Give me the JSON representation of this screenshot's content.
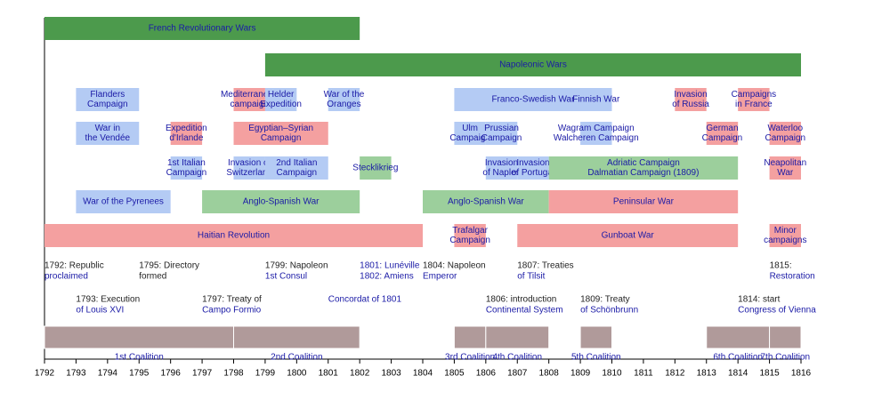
{
  "chart_data": {
    "type": "timeline",
    "xlim": [
      1792,
      1816
    ],
    "xticks": [
      1792,
      1793,
      1794,
      1795,
      1796,
      1797,
      1798,
      1799,
      1800,
      1801,
      1802,
      1803,
      1804,
      1805,
      1806,
      1807,
      1808,
      1809,
      1810,
      1811,
      1812,
      1813,
      1814,
      1815,
      1816
    ],
    "label_color": "#1a1aa6",
    "rows": [
      [
        {
          "start": 1792,
          "end": 1802,
          "label": [
            "French Revolutionary Wars"
          ],
          "color": "#4c9a4c"
        }
      ],
      [
        {
          "start": 1799,
          "end": 1816,
          "label": [
            "Napoleonic Wars"
          ],
          "color": "#4c9a4c"
        }
      ],
      [
        {
          "start": 1793,
          "end": 1795,
          "label": [
            "Flanders",
            "Campaign"
          ],
          "color": "#b4cbf4"
        },
        {
          "start": 1798,
          "end": 1799,
          "label": [
            "Mediterranean",
            "campaign"
          ],
          "color": "#f4a0a0"
        },
        {
          "start": 1799,
          "end": 1800,
          "label": [
            "Helder",
            "Expedition"
          ],
          "color": "#b4cbf4"
        },
        {
          "start": 1801,
          "end": 1802,
          "label": [
            "War of the",
            "Oranges"
          ],
          "color": "#b4cbf4"
        },
        {
          "start": 1805,
          "end": 1810,
          "label": [
            "Franco-Swedish War"
          ],
          "color": "#b4cbf4"
        },
        {
          "start": 1809,
          "end": 1810,
          "label": [
            "Finnish War"
          ],
          "color": "#b4cbf4"
        },
        {
          "start": 1812,
          "end": 1813,
          "label": [
            "Invasion",
            "of Russia"
          ],
          "color": "#f4a0a0"
        },
        {
          "start": 1814,
          "end": 1815,
          "label": [
            "Campaigns",
            "in France"
          ],
          "color": "#f4a0a0"
        }
      ],
      [
        {
          "start": 1793,
          "end": 1795,
          "label": [
            "War in",
            "the Vendée"
          ],
          "color": "#b4cbf4"
        },
        {
          "start": 1796,
          "end": 1797,
          "label": [
            "Expedition",
            "d'Irlande"
          ],
          "color": "#f4a0a0"
        },
        {
          "start": 1798,
          "end": 1801,
          "label": [
            "Egyptian–Syrian",
            "Campaign"
          ],
          "color": "#f4a0a0"
        },
        {
          "start": 1805,
          "end": 1806,
          "label": [
            "Ulm",
            "Campaign"
          ],
          "color": "#b4cbf4"
        },
        {
          "start": 1806,
          "end": 1807,
          "label": [
            "Prussian",
            "Campaign"
          ],
          "color": "#b4cbf4"
        },
        {
          "start": 1809,
          "end": 1810,
          "label": [
            "Wagram Campaign",
            "Walcheren Campaign"
          ],
          "color": "#b4cbf4"
        },
        {
          "start": 1813,
          "end": 1814,
          "label": [
            "German",
            "Campaign"
          ],
          "color": "#f4a0a0"
        },
        {
          "start": 1815,
          "end": 1816,
          "label": [
            "Waterloo",
            "Campaign"
          ],
          "color": "#f4a0a0"
        }
      ],
      [
        {
          "start": 1796,
          "end": 1797,
          "label": [
            "1st Italian",
            "Campaign"
          ],
          "color": "#b4cbf4"
        },
        {
          "start": 1798,
          "end": 1799,
          "label": [
            "Invasion of",
            "Switzerland"
          ],
          "color": "#b4cbf4"
        },
        {
          "start": 1799,
          "end": 1801,
          "label": [
            "2nd Italian",
            "Campaign"
          ],
          "color": "#b4cbf4"
        },
        {
          "start": 1802,
          "end": 1803,
          "label": [
            "Stecklikrieg"
          ],
          "color": "#9ccf9c"
        },
        {
          "start": 1806,
          "end": 1807,
          "label": [
            "Invasion",
            "of Naples"
          ],
          "color": "#b4cbf4"
        },
        {
          "start": 1807,
          "end": 1808,
          "label": [
            "Invasion",
            "of Portugal"
          ],
          "color": "#b4cbf4"
        },
        {
          "start": 1808,
          "end": 1814,
          "label": [
            "Adriatic Campaign",
            "Dalmatian Campaign (1809)"
          ],
          "color": "#9ccf9c"
        },
        {
          "start": 1815,
          "end": 1816,
          "label": [
            "Neapolitan",
            "War"
          ],
          "color": "#f4a0a0"
        }
      ],
      [
        {
          "start": 1793,
          "end": 1796,
          "label": [
            "War of the Pyrenees"
          ],
          "color": "#b4cbf4"
        },
        {
          "start": 1797,
          "end": 1802,
          "label": [
            "Anglo-Spanish War"
          ],
          "color": "#9ccf9c"
        },
        {
          "start": 1804,
          "end": 1808,
          "label": [
            "Anglo-Spanish War"
          ],
          "color": "#9ccf9c"
        },
        {
          "start": 1808,
          "end": 1814,
          "label": [
            "Peninsular War"
          ],
          "color": "#f4a0a0"
        }
      ],
      [
        {
          "start": 1792,
          "end": 1804,
          "label": [
            "Haitian Revolution"
          ],
          "color": "#f4a0a0"
        },
        {
          "start": 1805,
          "end": 1806,
          "label": [
            "Trafalgar",
            "Campaign"
          ],
          "color": "#f4a0a0"
        },
        {
          "start": 1807,
          "end": 1814,
          "label": [
            "Gunboat War"
          ],
          "color": "#f4a0a0"
        },
        {
          "start": 1815,
          "end": 1816,
          "label": [
            "Minor",
            "campaigns"
          ],
          "color": "#f4a0a0"
        }
      ]
    ],
    "events": [
      [
        {
          "at": 1792,
          "lines": [
            "1792: Republic",
            "proclaimed"
          ],
          "linked": [
            false,
            true
          ]
        },
        {
          "at": 1795,
          "lines": [
            "1795: Directory",
            "formed"
          ],
          "linked": [
            false,
            false
          ]
        },
        {
          "at": 1799,
          "lines": [
            "1799: Napoleon",
            "1st Consul"
          ],
          "linked": [
            false,
            true
          ]
        },
        {
          "at": 1802,
          "lines": [
            "1801: Lunéville",
            "1802: Amiens"
          ],
          "linked": [
            true,
            true
          ]
        },
        {
          "at": 1804,
          "lines": [
            "1804: Napoleon",
            "Emperor"
          ],
          "linked": [
            false,
            true
          ]
        },
        {
          "at": 1807,
          "lines": [
            "1807: Treaties",
            "of Tilsit"
          ],
          "linked": [
            false,
            true
          ]
        },
        {
          "at": 1815,
          "lines": [
            "1815:",
            "Restoration"
          ],
          "linked": [
            false,
            true
          ]
        }
      ],
      [
        {
          "at": 1793,
          "lines": [
            "1793: Execution",
            "of Louis XVI"
          ],
          "linked": [
            false,
            true
          ]
        },
        {
          "at": 1797,
          "lines": [
            "1797: Treaty of",
            "Campo Formio"
          ],
          "linked": [
            false,
            true
          ]
        },
        {
          "at": 1801,
          "lines": [
            "Concordat of 1801"
          ],
          "linked": [
            true
          ]
        },
        {
          "at": 1806,
          "lines": [
            "1806: introduction",
            "Continental System"
          ],
          "linked": [
            false,
            true
          ]
        },
        {
          "at": 1809,
          "lines": [
            "1809: Treaty",
            "of Schönbrunn"
          ],
          "linked": [
            false,
            true
          ]
        },
        {
          "at": 1814,
          "lines": [
            "1814: start",
            "Congress of Vienna"
          ],
          "linked": [
            false,
            true
          ]
        }
      ]
    ],
    "coalition_color": "#b09a9a",
    "coalitions": [
      {
        "start": 1792,
        "end": 1798,
        "label": "1st Coalition"
      },
      {
        "start": 1798,
        "end": 1802,
        "label": "2nd Coalition"
      },
      {
        "start": 1805,
        "end": 1806,
        "label": "3rd Coalition"
      },
      {
        "start": 1806,
        "end": 1808,
        "label": "4th Coalition"
      },
      {
        "start": 1809,
        "end": 1810,
        "label": "5th Coalition"
      },
      {
        "start": 1813,
        "end": 1815,
        "label": "6th Coalition"
      },
      {
        "start": 1815,
        "end": 1816,
        "label": "7th Coalition"
      }
    ]
  }
}
